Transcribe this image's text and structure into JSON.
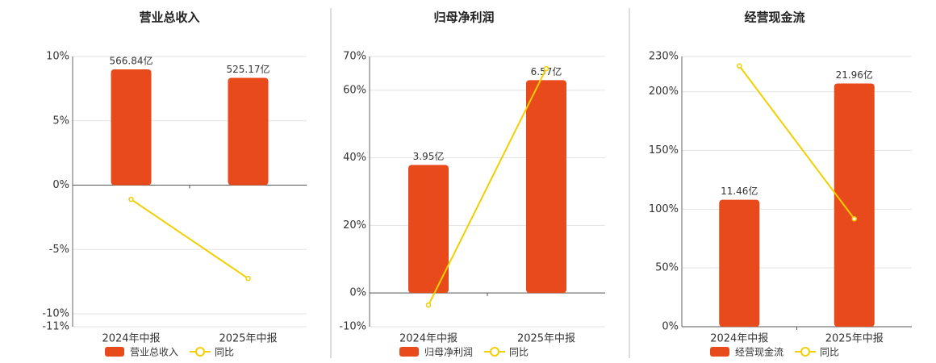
{
  "chart_data": [
    {
      "type": "bar",
      "title": "营业总收入",
      "categories": [
        "2024年中报",
        "2025年中报"
      ],
      "series": [
        {
          "name": "营业总收入",
          "color": "#e84a1b",
          "values": [
            566.84,
            525.17
          ],
          "value_labels": [
            "566.84亿",
            "525.17亿"
          ]
        },
        {
          "name": "同比",
          "type": "line",
          "color": "#f2cf00",
          "values": [
            -1.1,
            -7.25
          ]
        }
      ],
      "ylim": [
        -11,
        10
      ],
      "yticks": [
        {
          "value": 10,
          "label": "10%"
        },
        {
          "value": 5,
          "label": "5%"
        },
        {
          "value": 0,
          "label": "0%"
        },
        {
          "value": -5,
          "label": "-5%"
        },
        {
          "value": -10,
          "label": "-10%"
        },
        {
          "value": -11,
          "label": "-11%"
        }
      ],
      "grid": true
    },
    {
      "type": "bar",
      "title": "归母净利润",
      "categories": [
        "2024年中报",
        "2025年中报"
      ],
      "series": [
        {
          "name": "归母净利润",
          "color": "#e84a1b",
          "values": [
            3.95,
            6.57
          ],
          "value_labels": [
            "3.95亿",
            "6.57亿"
          ]
        },
        {
          "name": "同比",
          "type": "line",
          "color": "#f2cf00",
          "values": [
            -3.6,
            66.4
          ]
        }
      ],
      "ylim": [
        -10,
        70
      ],
      "yticks": [
        {
          "value": 70,
          "label": "70%"
        },
        {
          "value": 60,
          "label": "60%"
        },
        {
          "value": 40,
          "label": "40%"
        },
        {
          "value": 20,
          "label": "20%"
        },
        {
          "value": 0,
          "label": "0%"
        },
        {
          "value": -10,
          "label": "-10%"
        }
      ],
      "grid": true
    },
    {
      "type": "bar",
      "title": "经营现金流",
      "categories": [
        "2024年中报",
        "2025年中报"
      ],
      "series": [
        {
          "name": "经营现金流",
          "color": "#e84a1b",
          "values": [
            11.46,
            21.96
          ],
          "value_labels": [
            "11.46亿",
            "21.96亿"
          ]
        },
        {
          "name": "同比",
          "type": "line",
          "color": "#f2cf00",
          "values": [
            222,
            91.8
          ]
        }
      ],
      "ylim": [
        0,
        230
      ],
      "yticks": [
        {
          "value": 230,
          "label": "230%"
        },
        {
          "value": 200,
          "label": "200%"
        },
        {
          "value": 150,
          "label": "150%"
        },
        {
          "value": 100,
          "label": "100%"
        },
        {
          "value": 50,
          "label": "50%"
        },
        {
          "value": 0,
          "label": "0%"
        }
      ],
      "grid": true
    }
  ]
}
